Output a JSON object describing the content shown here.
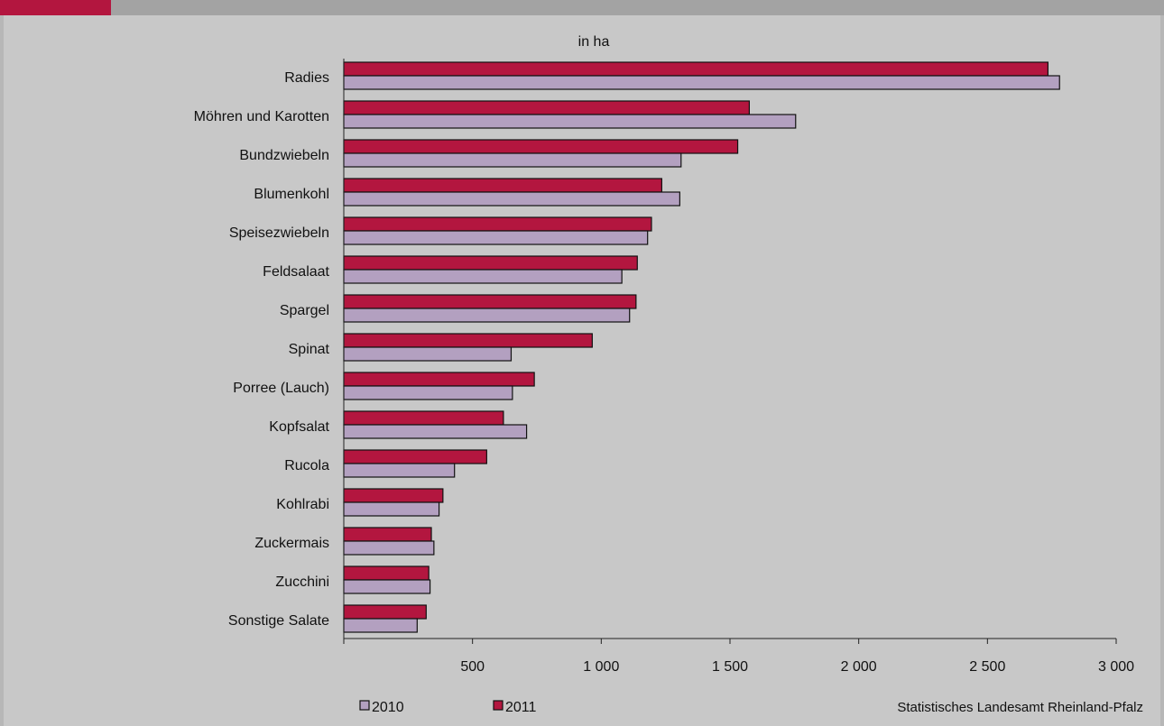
{
  "unit_label": "in ha",
  "source": "Statistisches Landesamt Rheinland-Pfalz",
  "colors": {
    "accent_strip": "#b3163f",
    "series_2011": "#b3163f",
    "series_2010": "#b3a0c0",
    "bar_border": "#111111",
    "background": "#c8c8c8"
  },
  "chart_data": {
    "type": "bar",
    "orientation": "horizontal",
    "categories": [
      "Radies",
      "Möhren und Karotten",
      "Bundzwiebeln",
      "Blumenkohl",
      "Speisezwiebeln",
      "Feldsalaat",
      "Spargel",
      "Spinat",
      "Porree (Lauch)",
      "Kopfsalat",
      "Rucola",
      "Kohlrabi",
      "Zuckermais",
      "Zucchini",
      "Sonstige Salate"
    ],
    "series": [
      {
        "name": "2011",
        "color": "#b3163f",
        "values": [
          2735,
          1575,
          1530,
          1235,
          1195,
          1140,
          1135,
          965,
          740,
          620,
          555,
          385,
          340,
          330,
          320
        ]
      },
      {
        "name": "2010",
        "color": "#b3a0c0",
        "values": [
          2780,
          1755,
          1310,
          1305,
          1180,
          1080,
          1110,
          650,
          655,
          710,
          430,
          370,
          350,
          335,
          285
        ]
      }
    ],
    "xlim": [
      0,
      3000
    ],
    "xticks": [
      500,
      1000,
      1500,
      2000,
      2500,
      3000
    ],
    "xtick_labels": [
      "500",
      "1 000",
      "1 500",
      "2 000",
      "2 500",
      "3 000"
    ],
    "legend_position": "bottom-left",
    "legend": [
      "2010",
      "2011"
    ],
    "grid": false
  }
}
